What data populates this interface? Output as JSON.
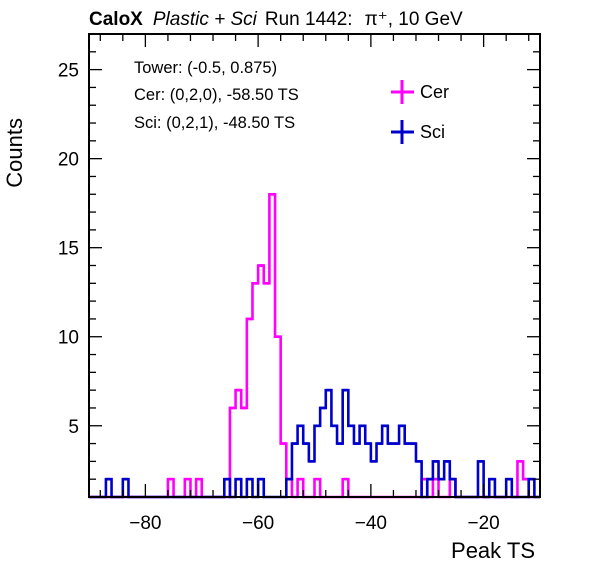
{
  "title": {
    "experiment": "CaloX",
    "config": "Plastic + Sci",
    "run": "Run 1442:",
    "particle": "π⁺, 10 GeV"
  },
  "info": {
    "tower": "Tower: (-0.5, 0.875)",
    "cer": "Cer: (0,2,0), -58.50 TS",
    "sci": "Sci: (0,2,1), -48.50 TS"
  },
  "colors": {
    "cer": "#ff00ff",
    "sci": "#0000cc",
    "axis": "#000000"
  },
  "chart_data": {
    "type": "histogram",
    "xlabel": "Peak TS",
    "ylabel": "Counts",
    "xlim": [
      -90,
      -10
    ],
    "ylim": [
      1,
      27
    ],
    "bin_width": 1,
    "x_ticks": [
      -80,
      -60,
      -40,
      -20
    ],
    "y_ticks": [
      5,
      10,
      15,
      20,
      25
    ],
    "legend_position": "top-right",
    "series": [
      {
        "name": "Cer",
        "color_key": "cer",
        "bins": [
          {
            "x": -76,
            "y": 2
          },
          {
            "x": -73,
            "y": 2
          },
          {
            "x": -71,
            "y": 2
          },
          {
            "x": -65,
            "y": 6
          },
          {
            "x": -64,
            "y": 7
          },
          {
            "x": -63,
            "y": 6
          },
          {
            "x": -62,
            "y": 11
          },
          {
            "x": -61,
            "y": 13
          },
          {
            "x": -60,
            "y": 14
          },
          {
            "x": -59,
            "y": 13
          },
          {
            "x": -58,
            "y": 18
          },
          {
            "x": -57,
            "y": 10
          },
          {
            "x": -56,
            "y": 4
          },
          {
            "x": -55,
            "y": 2
          },
          {
            "x": -53,
            "y": 2
          },
          {
            "x": -50,
            "y": 2
          },
          {
            "x": -45,
            "y": 2
          },
          {
            "x": -31,
            "y": 2
          },
          {
            "x": -29,
            "y": 2
          },
          {
            "x": -26,
            "y": 2
          },
          {
            "x": -14,
            "y": 3
          },
          {
            "x": -13,
            "y": 2
          }
        ]
      },
      {
        "name": "Sci",
        "color_key": "sci",
        "bins": [
          {
            "x": -87,
            "y": 2
          },
          {
            "x": -84,
            "y": 2
          },
          {
            "x": -66,
            "y": 2
          },
          {
            "x": -64,
            "y": 2
          },
          {
            "x": -62,
            "y": 2
          },
          {
            "x": -60,
            "y": 2
          },
          {
            "x": -55,
            "y": 2
          },
          {
            "x": -54,
            "y": 4
          },
          {
            "x": -53,
            "y": 5
          },
          {
            "x": -52,
            "y": 4
          },
          {
            "x": -51,
            "y": 3
          },
          {
            "x": -50,
            "y": 5
          },
          {
            "x": -49,
            "y": 6
          },
          {
            "x": -48,
            "y": 7
          },
          {
            "x": -47,
            "y": 5
          },
          {
            "x": -46,
            "y": 4
          },
          {
            "x": -45,
            "y": 7
          },
          {
            "x": -44,
            "y": 5
          },
          {
            "x": -43,
            "y": 4
          },
          {
            "x": -42,
            "y": 5
          },
          {
            "x": -41,
            "y": 4
          },
          {
            "x": -40,
            "y": 3
          },
          {
            "x": -39,
            "y": 4
          },
          {
            "x": -38,
            "y": 5
          },
          {
            "x": -37,
            "y": 4
          },
          {
            "x": -36,
            "y": 4
          },
          {
            "x": -35,
            "y": 5
          },
          {
            "x": -34,
            "y": 4
          },
          {
            "x": -33,
            "y": 4
          },
          {
            "x": -32,
            "y": 3
          },
          {
            "x": -30,
            "y": 2
          },
          {
            "x": -29,
            "y": 3
          },
          {
            "x": -28,
            "y": 2
          },
          {
            "x": -27,
            "y": 3
          },
          {
            "x": -26,
            "y": 2
          },
          {
            "x": -21,
            "y": 3
          },
          {
            "x": -19,
            "y": 2
          },
          {
            "x": -16,
            "y": 2
          },
          {
            "x": -12,
            "y": 2
          }
        ]
      }
    ]
  }
}
